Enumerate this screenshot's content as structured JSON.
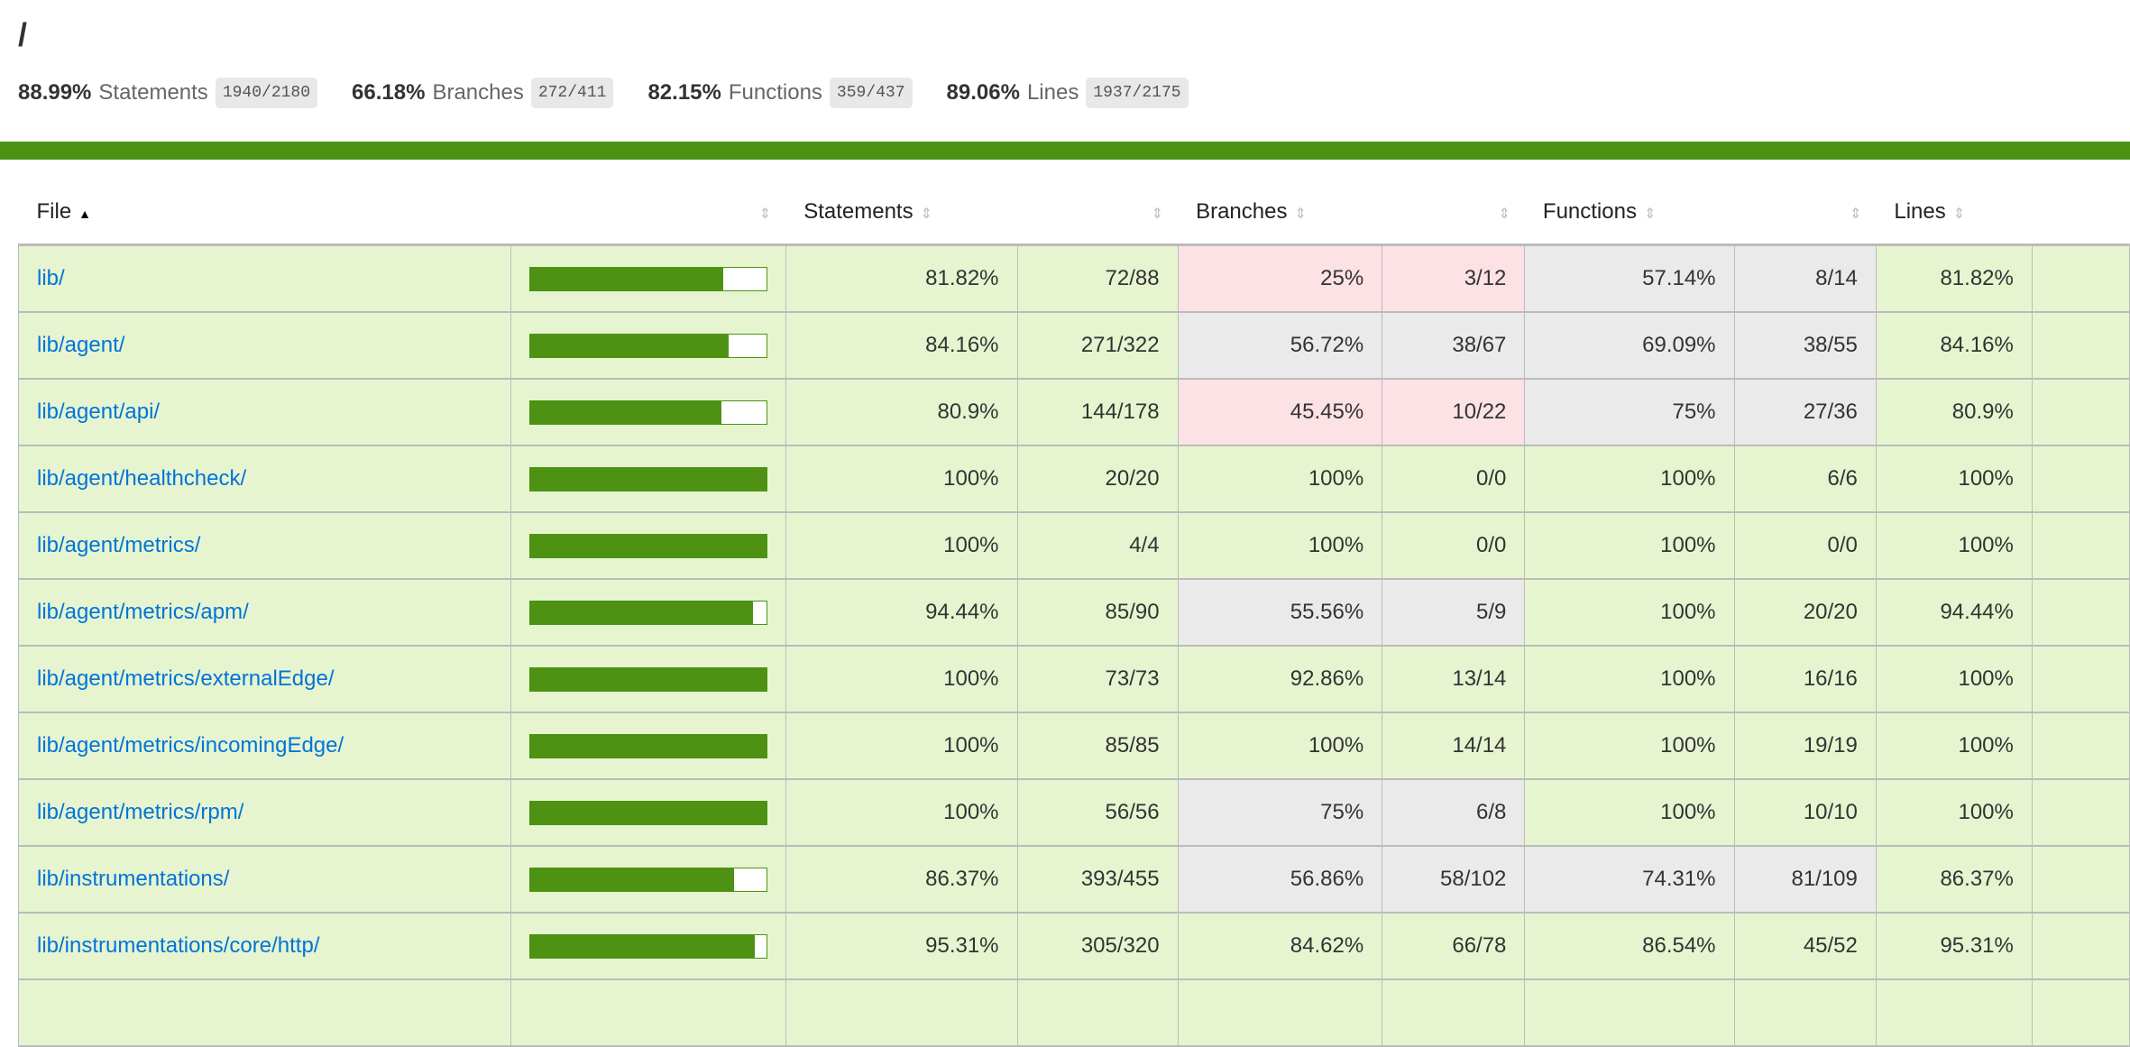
{
  "title": "/",
  "summary": [
    {
      "pct": "88.99%",
      "label": "Statements",
      "frac": "1940/2180"
    },
    {
      "pct": "66.18%",
      "label": "Branches",
      "frac": "272/411"
    },
    {
      "pct": "82.15%",
      "label": "Functions",
      "frac": "359/437"
    },
    {
      "pct": "89.06%",
      "label": "Lines",
      "frac": "1937/2175"
    }
  ],
  "colors": {
    "green": "#4d9213",
    "high": "#e6f5d0",
    "medium": "#eaeaea",
    "low": "#fce1e5",
    "link": "#0074d9"
  },
  "headers": {
    "file": "File",
    "statements": "Statements",
    "branches": "Branches",
    "functions": "Functions",
    "lines": "Lines",
    "sorted_icon": "▲",
    "sort_icon": "⇕"
  },
  "rows": [
    {
      "file": "lib/",
      "bar": 81.82,
      "s": "81.82%",
      "sc": "72/88",
      "sl": "high",
      "b": "25%",
      "bc": "3/12",
      "bl": "low",
      "f": "57.14%",
      "fc": "8/14",
      "fl": "medium",
      "l": "81.82%",
      "ll": "high"
    },
    {
      "file": "lib/agent/",
      "bar": 84.16,
      "s": "84.16%",
      "sc": "271/322",
      "sl": "high",
      "b": "56.72%",
      "bc": "38/67",
      "bl": "medium",
      "f": "69.09%",
      "fc": "38/55",
      "fl": "medium",
      "l": "84.16%",
      "ll": "high"
    },
    {
      "file": "lib/agent/api/",
      "bar": 80.9,
      "s": "80.9%",
      "sc": "144/178",
      "sl": "high",
      "b": "45.45%",
      "bc": "10/22",
      "bl": "low",
      "f": "75%",
      "fc": "27/36",
      "fl": "medium",
      "l": "80.9%",
      "ll": "high"
    },
    {
      "file": "lib/agent/healthcheck/",
      "bar": 100,
      "s": "100%",
      "sc": "20/20",
      "sl": "high",
      "b": "100%",
      "bc": "0/0",
      "bl": "high",
      "f": "100%",
      "fc": "6/6",
      "fl": "high",
      "l": "100%",
      "ll": "high"
    },
    {
      "file": "lib/agent/metrics/",
      "bar": 100,
      "s": "100%",
      "sc": "4/4",
      "sl": "high",
      "b": "100%",
      "bc": "0/0",
      "bl": "high",
      "f": "100%",
      "fc": "0/0",
      "fl": "high",
      "l": "100%",
      "ll": "high"
    },
    {
      "file": "lib/agent/metrics/apm/",
      "bar": 94.44,
      "s": "94.44%",
      "sc": "85/90",
      "sl": "high",
      "b": "55.56%",
      "bc": "5/9",
      "bl": "medium",
      "f": "100%",
      "fc": "20/20",
      "fl": "high",
      "l": "94.44%",
      "ll": "high"
    },
    {
      "file": "lib/agent/metrics/externalEdge/",
      "bar": 100,
      "s": "100%",
      "sc": "73/73",
      "sl": "high",
      "b": "92.86%",
      "bc": "13/14",
      "bl": "high",
      "f": "100%",
      "fc": "16/16",
      "fl": "high",
      "l": "100%",
      "ll": "high"
    },
    {
      "file": "lib/agent/metrics/incomingEdge/",
      "bar": 100,
      "s": "100%",
      "sc": "85/85",
      "sl": "high",
      "b": "100%",
      "bc": "14/14",
      "bl": "high",
      "f": "100%",
      "fc": "19/19",
      "fl": "high",
      "l": "100%",
      "ll": "high"
    },
    {
      "file": "lib/agent/metrics/rpm/",
      "bar": 100,
      "s": "100%",
      "sc": "56/56",
      "sl": "high",
      "b": "75%",
      "bc": "6/8",
      "bl": "medium",
      "f": "100%",
      "fc": "10/10",
      "fl": "high",
      "l": "100%",
      "ll": "high"
    },
    {
      "file": "lib/instrumentations/",
      "bar": 86.37,
      "s": "86.37%",
      "sc": "393/455",
      "sl": "high",
      "b": "56.86%",
      "bc": "58/102",
      "bl": "medium",
      "f": "74.31%",
      "fc": "81/109",
      "fl": "medium",
      "l": "86.37%",
      "ll": "high"
    },
    {
      "file": "lib/instrumentations/core/http/",
      "bar": 95.31,
      "s": "95.31%",
      "sc": "305/320",
      "sl": "high",
      "b": "84.62%",
      "bc": "66/78",
      "bl": "high",
      "f": "86.54%",
      "fc": "45/52",
      "fl": "high",
      "l": "95.31%",
      "ll": "high"
    }
  ]
}
